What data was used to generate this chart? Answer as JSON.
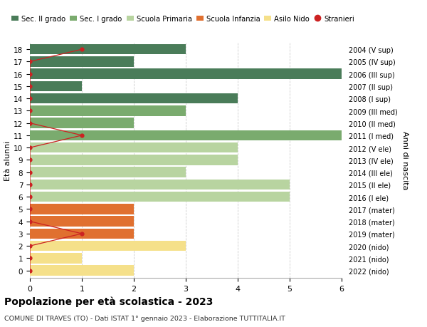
{
  "ages": [
    18,
    17,
    16,
    15,
    14,
    13,
    12,
    11,
    10,
    9,
    8,
    7,
    6,
    5,
    4,
    3,
    2,
    1,
    0
  ],
  "right_labels": [
    "2004 (V sup)",
    "2005 (IV sup)",
    "2006 (III sup)",
    "2007 (II sup)",
    "2008 (I sup)",
    "2009 (III med)",
    "2010 (II med)",
    "2011 (I med)",
    "2012 (V ele)",
    "2013 (IV ele)",
    "2014 (III ele)",
    "2015 (II ele)",
    "2016 (I ele)",
    "2017 (mater)",
    "2018 (mater)",
    "2019 (mater)",
    "2020 (nido)",
    "2021 (nido)",
    "2022 (nido)"
  ],
  "bar_values": [
    3,
    2,
    6,
    1,
    4,
    3,
    2,
    6,
    4,
    4,
    3,
    5,
    5,
    2,
    2,
    2,
    3,
    1,
    2
  ],
  "bar_colors": [
    "#4a7c59",
    "#4a7c59",
    "#4a7c59",
    "#4a7c59",
    "#4a7c59",
    "#7aab6e",
    "#7aab6e",
    "#7aab6e",
    "#b8d4a0",
    "#b8d4a0",
    "#b8d4a0",
    "#b8d4a0",
    "#b8d4a0",
    "#e07030",
    "#e07030",
    "#e07030",
    "#f5e08a",
    "#f5e08a",
    "#f5e08a"
  ],
  "stranieri_x": [
    1,
    0,
    0,
    0,
    0,
    0,
    0,
    1,
    0,
    0,
    0,
    0,
    0,
    0,
    0,
    1,
    0,
    0,
    0
  ],
  "stranieri_ages": [
    18,
    17,
    16,
    15,
    14,
    13,
    12,
    11,
    10,
    9,
    8,
    7,
    6,
    5,
    4,
    3,
    2,
    1,
    0
  ],
  "color_sec2": "#4a7c59",
  "color_sec1": "#7aab6e",
  "color_prim": "#b8d4a0",
  "color_infanzia": "#e07030",
  "color_nido": "#f5e08a",
  "color_stranieri": "#cc2222",
  "title": "Popolazione per età scolastica - 2023",
  "subtitle": "COMUNE DI TRAVES (TO) - Dati ISTAT 1° gennaio 2023 - Elaborazione TUTTITALIA.IT",
  "ylabel": "Età alunni",
  "ylabel_right": "Anni di nascita",
  "xlim_max": 6,
  "legend_labels": [
    "Sec. II grado",
    "Sec. I grado",
    "Scuola Primaria",
    "Scuola Infanzia",
    "Asilo Nido",
    "Stranieri"
  ],
  "background_color": "#ffffff",
  "grid_color": "#cccccc"
}
